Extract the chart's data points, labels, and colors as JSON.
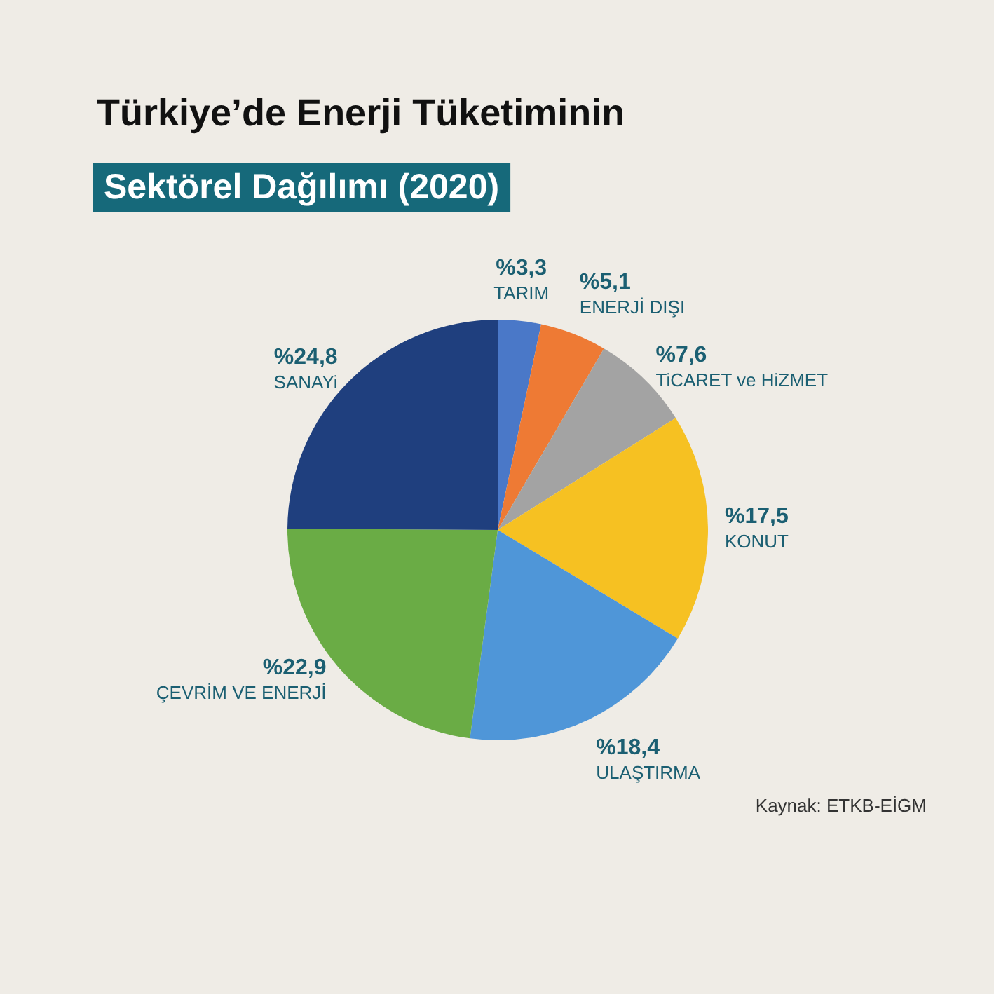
{
  "chart_data": {
    "type": "pie",
    "title": "Türkiye’de Enerji Tüketiminin",
    "subtitle": "Sektörel Dağılımı (2020)",
    "categories": [
      "TARIM",
      "ENERJİ DIŞI",
      "TiCARET ve HiZMET",
      "KONUT",
      "ULAŞTIRMA",
      "ÇEVRİM VE ENERJİ",
      "SANAYi"
    ],
    "values": [
      3.3,
      5.1,
      7.6,
      17.5,
      18.4,
      22.9,
      24.8
    ],
    "colors": [
      "#4a78c8",
      "#ee7a34",
      "#a3a3a3",
      "#f6c122",
      "#4f96d8",
      "#6aac45",
      "#1f3f7e"
    ],
    "value_labels": [
      "%3,3",
      "%5,1",
      "%7,6",
      "%17,5",
      "%18,4",
      "%22,9",
      "%24,8"
    ],
    "annotations": [
      "Kaynak: ETKB-EİGM"
    ]
  }
}
